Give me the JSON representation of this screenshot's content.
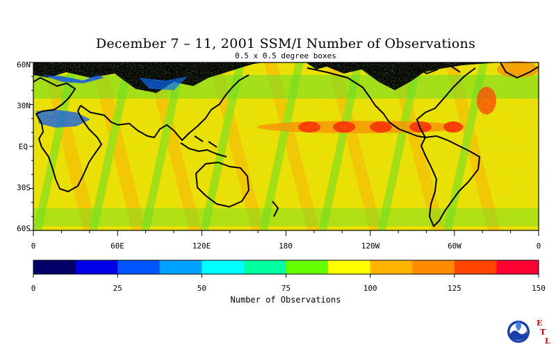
{
  "title": "December 7 – 11, 2001 SSM/I Number of Observations",
  "subtitle": "0.5 x 0.5 degree boxes",
  "map": {
    "lat_labels": [
      "60N",
      "30N",
      "EQ",
      "30S",
      "60S"
    ],
    "lon_labels": [
      "0",
      "60E",
      "120E",
      "180",
      "120W",
      "60W",
      "0"
    ]
  },
  "colorbar": {
    "title": "Number of Observations",
    "min": 0,
    "max": 150,
    "tick_labels": [
      "0",
      "25",
      "50",
      "75",
      "100",
      "125",
      "150"
    ],
    "colors": [
      "#000066",
      "#0000e6",
      "#0055ff",
      "#00a0ff",
      "#00ffff",
      "#00ffa0",
      "#66ff00",
      "#ffff00",
      "#ffb400",
      "#ff8c00",
      "#ff4400",
      "#ff0033"
    ]
  },
  "logo": {
    "name": "noaa-logo",
    "letters": [
      "E",
      "T",
      "L"
    ],
    "accent": "#cc0000"
  }
}
